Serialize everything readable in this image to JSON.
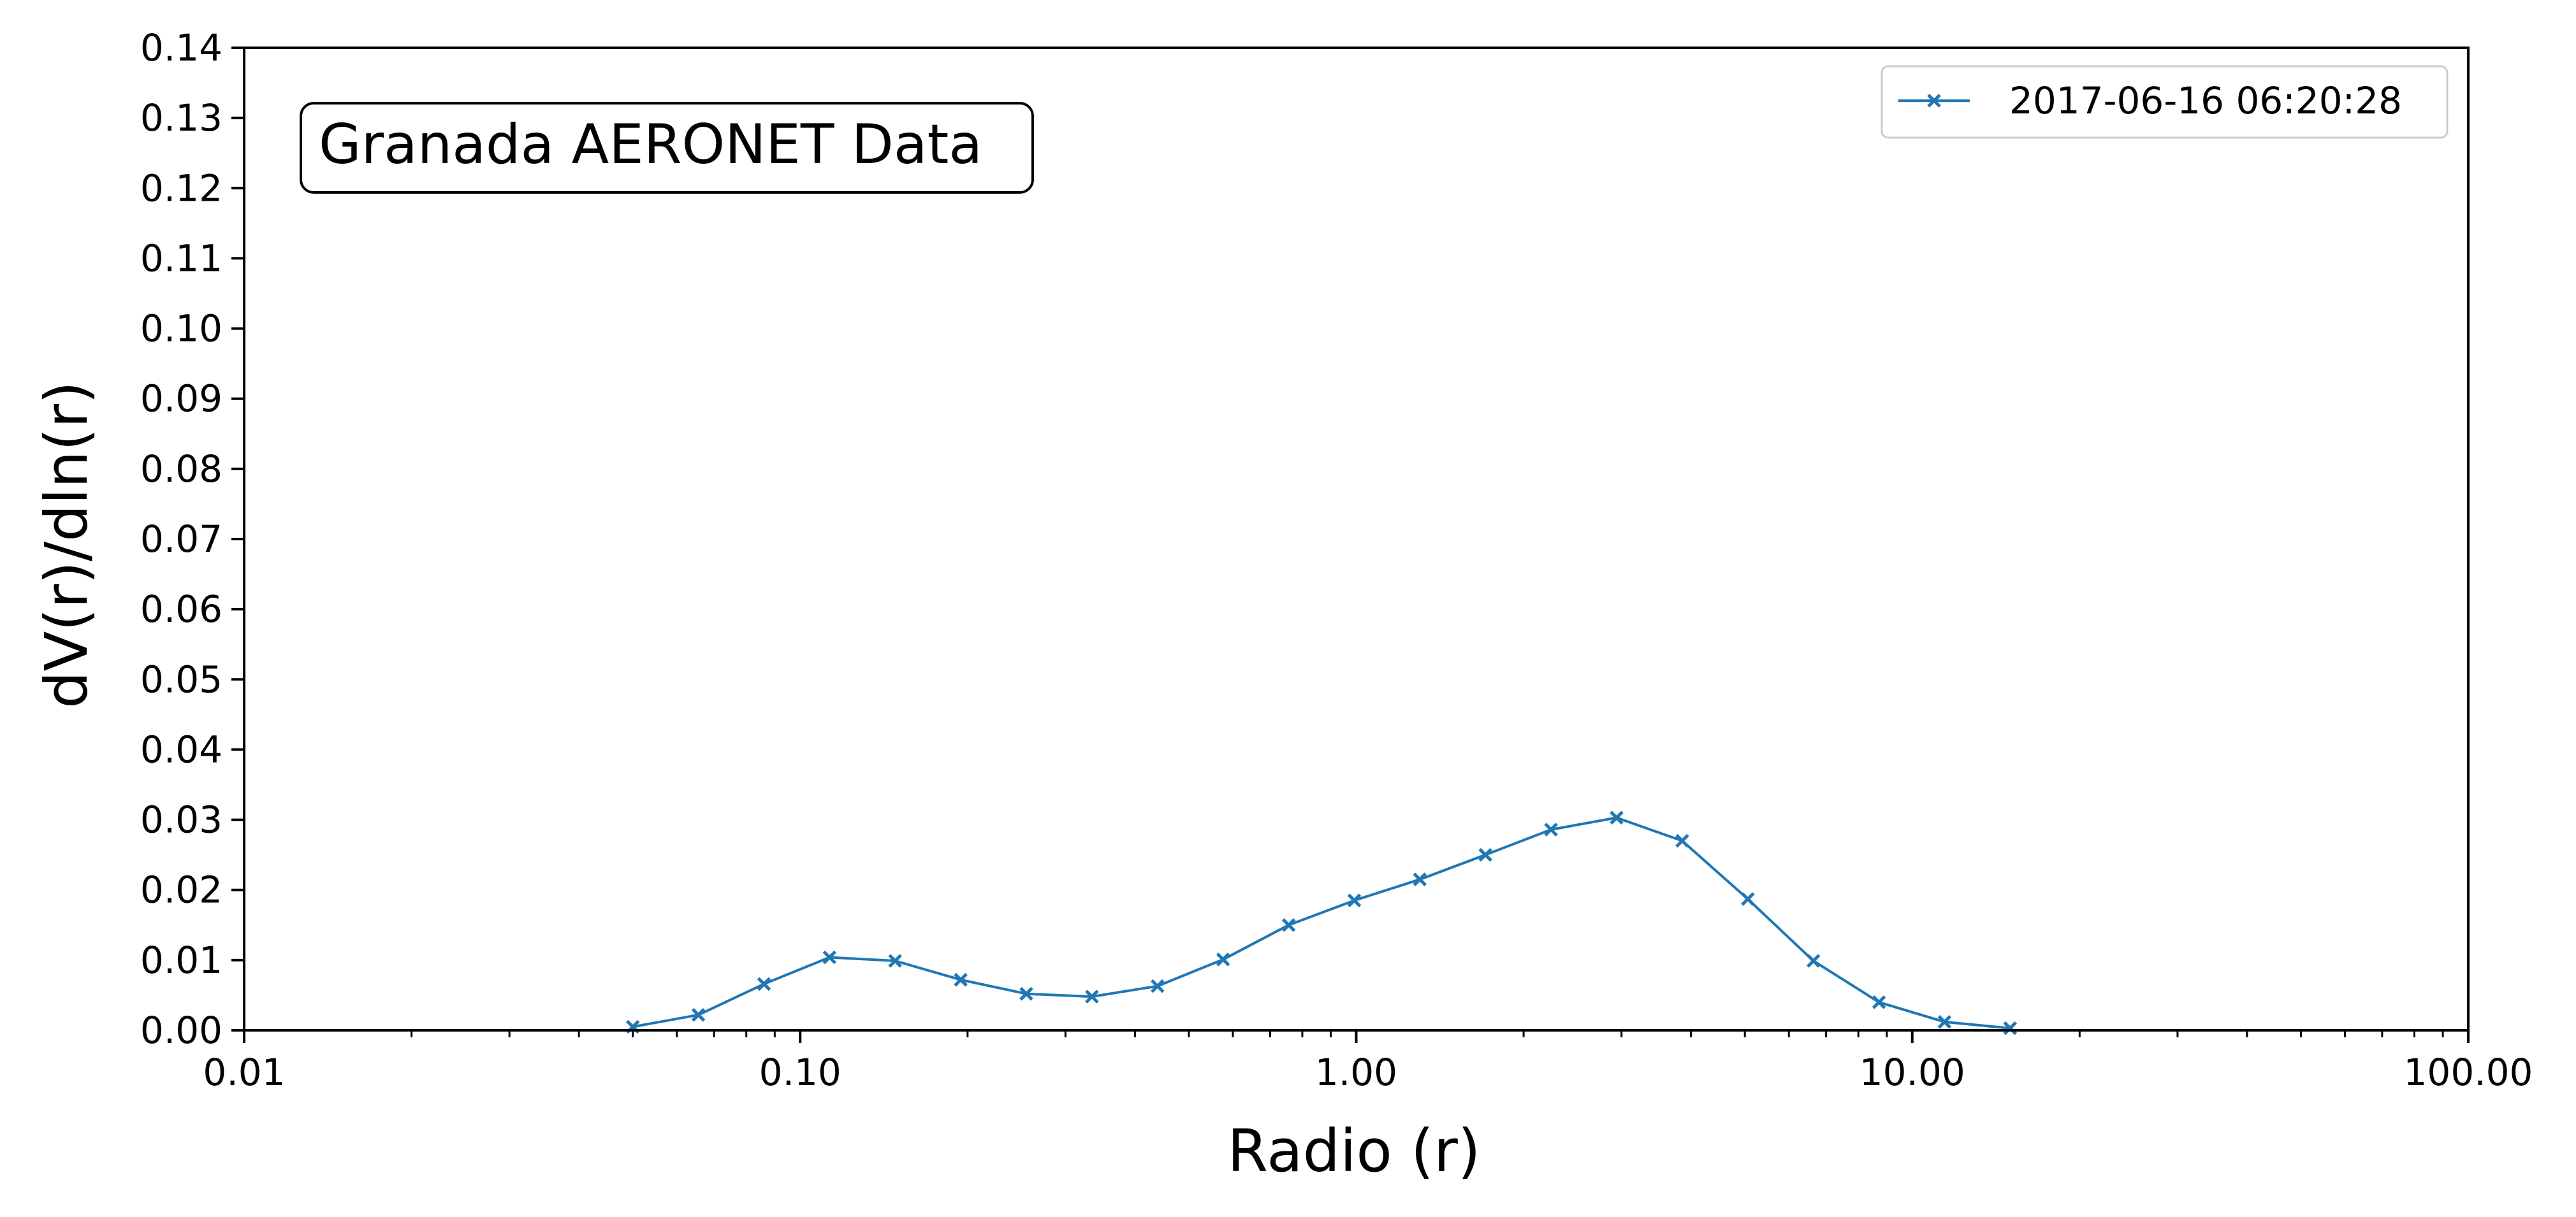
{
  "chart_data": {
    "type": "line",
    "annotation": "Granada AERONET Data",
    "xlabel": "Radio (r)",
    "ylabel": "dV(r)/dln(r)",
    "x_scale": "log",
    "xlim": [
      0.01,
      100
    ],
    "ylim": [
      0,
      0.14
    ],
    "x_ticks": [
      0.01,
      0.1,
      1,
      10,
      100
    ],
    "x_tick_labels": [
      "0.01",
      "0.10",
      "1.00",
      "10.00",
      "100.00"
    ],
    "y_ticks": [
      0,
      0.01,
      0.02,
      0.03,
      0.04,
      0.05,
      0.06,
      0.07,
      0.08,
      0.09,
      0.1,
      0.11,
      0.12,
      0.13,
      0.14
    ],
    "y_tick_labels": [
      "0.00",
      "0.01",
      "0.02",
      "0.03",
      "0.04",
      "0.05",
      "0.06",
      "0.07",
      "0.08",
      "0.09",
      "0.10",
      "0.11",
      "0.12",
      "0.13",
      "0.14"
    ],
    "grid": false,
    "legend_position": "top-right",
    "series": [
      {
        "name": "2017-06-16 06:20:28",
        "color": "#1f77b4",
        "marker": "x",
        "x": [
          0.05,
          0.065604,
          0.086077,
          0.112939,
          0.148184,
          0.194429,
          0.255105,
          0.334716,
          0.439173,
          0.576227,
          0.756052,
          0.99199,
          1.301558,
          1.707738,
          2.240676,
          2.939929,
          3.857392,
          5.061168,
          6.640603,
          8.713,
          11.432,
          15.0
        ],
        "y": [
          0.0005,
          0.0022,
          0.0066,
          0.0104,
          0.0099,
          0.0072,
          0.0052,
          0.0048,
          0.0063,
          0.0101,
          0.015,
          0.0185,
          0.0215,
          0.025,
          0.0286,
          0.0303,
          0.027,
          0.0187,
          0.0099,
          0.004,
          0.0012,
          0.0003
        ]
      }
    ]
  }
}
